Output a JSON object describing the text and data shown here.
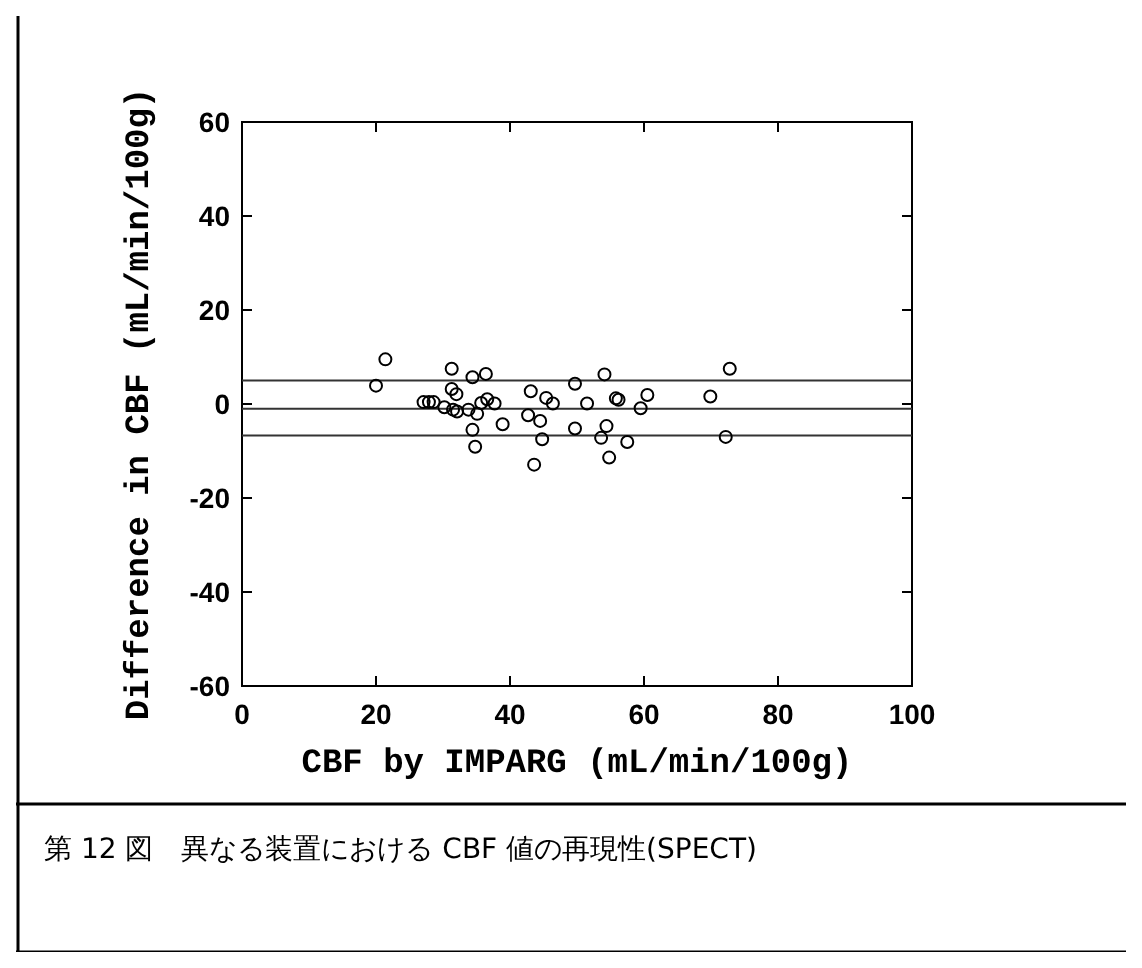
{
  "chart_data": {
    "type": "scatter",
    "xlabel": "CBF by IMPARG (mL/min/100g)",
    "ylabel": "Difference in CBF (mL/min/100g)",
    "annotations": [
      "第 12 図　異なる装置における CBF 値の再現性(SPECT)"
    ],
    "xlim": [
      0,
      100
    ],
    "xticks": [
      0,
      20,
      40,
      60,
      80,
      100
    ],
    "ylim": [
      -60,
      60
    ],
    "yticks": [
      -60,
      -40,
      -20,
      0,
      20,
      40,
      60
    ],
    "grid": false,
    "marker": "circle",
    "ref_lines": [
      {
        "axis": "y",
        "value": 5,
        "color": "#333333"
      },
      {
        "axis": "y",
        "value": -1,
        "color": "#333333"
      },
      {
        "axis": "y",
        "value": -6.7,
        "color": "#333333"
      }
    ],
    "series": [
      {
        "color": "#000000",
        "x": [
          21.4,
          20,
          27.1,
          27.9,
          28.6,
          30.2,
          31.3,
          31.3,
          32,
          31.5,
          32.1,
          33.8,
          34.4,
          34.4,
          34.8,
          35.1,
          35.7,
          36.4,
          36.6,
          37.7,
          38.9,
          43.1,
          42.7,
          43.6,
          44.5,
          44.8,
          45.4,
          46.4,
          49.7,
          49.7,
          51.5,
          53.6,
          54.1,
          54.4,
          54.8,
          55.8,
          56.2,
          57.5,
          59.5,
          60.5,
          69.9,
          72.2,
          72.8
        ],
        "values": [
          9.5,
          3.9,
          0.4,
          0.4,
          0.4,
          -0.7,
          7.5,
          3.2,
          2.1,
          -1.2,
          -1.6,
          -1.2,
          5.7,
          -5.5,
          -9.1,
          -2.1,
          0.2,
          6.4,
          1,
          0.1,
          -4.3,
          2.7,
          -2.4,
          -12.9,
          -3.6,
          -7.5,
          1.3,
          0.1,
          4.3,
          -5.2,
          0.1,
          -7.2,
          6.3,
          -4.7,
          -11.4,
          1.2,
          0.9,
          -8.1,
          -0.9,
          1.9,
          1.6,
          -7,
          7.5
        ]
      }
    ]
  }
}
